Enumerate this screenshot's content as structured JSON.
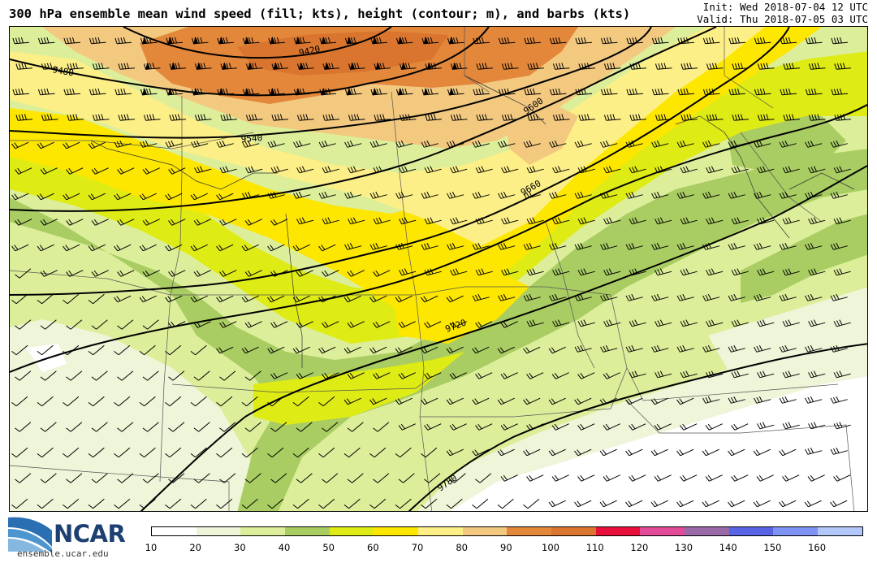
{
  "header": {
    "title": "300 hPa ensemble mean wind speed (fill; kts), height (contour; m), and barbs (kts)",
    "init": "Init: Wed 2018-07-04 12 UTC",
    "valid": "Valid: Thu 2018-07-05 03 UTC"
  },
  "contours": {
    "labels": [
      "9420",
      "9480",
      "9540",
      "9600",
      "9660",
      "9720",
      "9780"
    ]
  },
  "colorbar": {
    "ticks": [
      "10",
      "20",
      "30",
      "40",
      "50",
      "60",
      "70",
      "80",
      "90",
      "100",
      "110",
      "120",
      "130",
      "140",
      "150",
      "160"
    ],
    "colors": [
      "#ffffff",
      "#eef5d8",
      "#dcee9a",
      "#a9cd62",
      "#dfeb14",
      "#fde700",
      "#fdef87",
      "#f3c980",
      "#e3873b",
      "#d9752e",
      "#e8103a",
      "#e24b98",
      "#9a6aa8",
      "#5863e6",
      "#7f93f2",
      "#b2c8fa"
    ]
  },
  "branding": {
    "logo_text": "NCAR",
    "url": "ensemble.ucar.edu"
  }
}
